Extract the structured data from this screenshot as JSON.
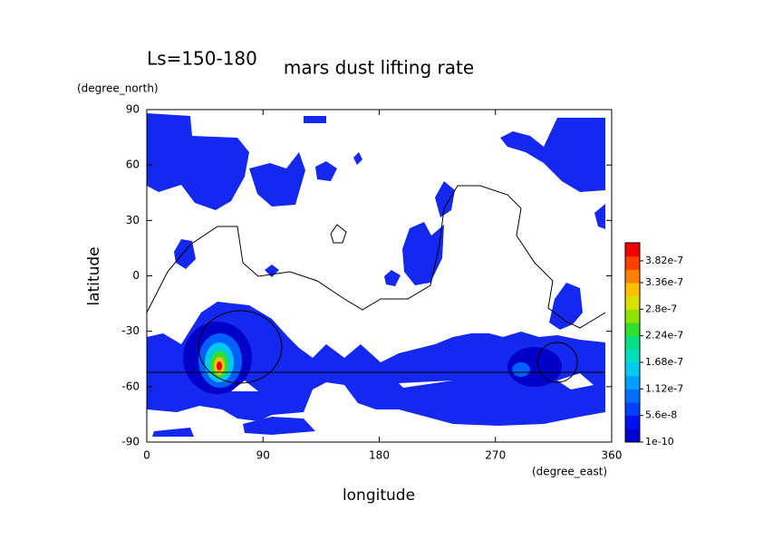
{
  "chart_data": {
    "type": "contour",
    "title": "mars dust lifting rate",
    "subtitle": "Ls=150-180",
    "x_label": "longitude",
    "x_unit": "(degree_east)",
    "y_label": "latitude",
    "y_unit": "(degree_north)",
    "xlim": [
      0,
      360
    ],
    "xticks": [
      0,
      90,
      180,
      270,
      360
    ],
    "ylim": [
      -90,
      90
    ],
    "yticks": [
      -90,
      -60,
      -30,
      0,
      30,
      60,
      90
    ],
    "colorbar": {
      "clim": [
        0,
        4.2e-07
      ],
      "colors": [
        "#0000d0",
        "#0010f0",
        "#0040ff",
        "#0070ff",
        "#00a0ff",
        "#00c8f0",
        "#00e0c0",
        "#00e080",
        "#30e030",
        "#90e000",
        "#d8e000",
        "#ffc000",
        "#ff8000",
        "#ff4000",
        "#f00000"
      ],
      "ticks": [
        {
          "value": 1e-10,
          "label": "1e-10"
        },
        {
          "value": 5.6e-08,
          "label": "5.6e-8"
        },
        {
          "value": 1.12e-07,
          "label": "1.12e-7"
        },
        {
          "value": 1.68e-07,
          "label": "1.68e-7"
        },
        {
          "value": 2.24e-07,
          "label": "2.24e-7"
        },
        {
          "value": 2.8e-07,
          "label": "2.8e-7"
        },
        {
          "value": 3.36e-07,
          "label": "3.36e-7"
        },
        {
          "value": 3.82e-07,
          "label": "3.82e-7"
        }
      ]
    }
  }
}
